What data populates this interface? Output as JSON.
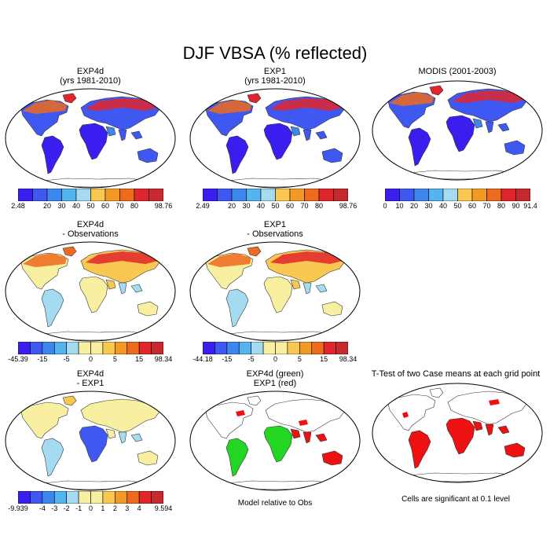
{
  "title": "DJF VBSA (% reflected)",
  "palette": [
    "#3a1ef0",
    "#3f58f2",
    "#3c86ee",
    "#54b4ee",
    "#a4dbf0",
    "#f8f0a0",
    "#f8c850",
    "#f39a26",
    "#ee6a1c",
    "#e0262c",
    "#c62a2e"
  ],
  "green": "#22d622",
  "red": "#ee1111",
  "panels": [
    {
      "id": "exp4d",
      "title": [
        "EXP4d",
        "(yrs 1981-2010)"
      ],
      "map": "full",
      "scheme": "abs",
      "ticks": [
        "2.48",
        "",
        "20",
        "30",
        "40",
        "50",
        "60",
        "70",
        "80",
        "",
        "98.76"
      ]
    },
    {
      "id": "exp1",
      "title": [
        "EXP1",
        "(yrs 1981-2010)"
      ],
      "map": "full",
      "scheme": "abs",
      "ticks": [
        "2.49",
        "",
        "20",
        "30",
        "40",
        "50",
        "60",
        "70",
        "80",
        "",
        "98.76"
      ]
    },
    {
      "id": "modis",
      "title": [
        "MODIS (2001-2003)"
      ],
      "map": "full",
      "scheme": "abs",
      "ticks": [
        "0",
        "10",
        "20",
        "30",
        "40",
        "50",
        "60",
        "70",
        "80",
        "90",
        "91.4"
      ]
    },
    {
      "id": "exp4d-obs",
      "title": [
        "EXP4d",
        "- Observations"
      ],
      "map": "full",
      "scheme": "diff",
      "ticks": [
        "-45.39",
        "",
        "-15",
        "",
        "-5",
        "",
        "0",
        "",
        "5",
        "",
        "15",
        "",
        "98.34"
      ]
    },
    {
      "id": "exp1-obs",
      "title": [
        "EXP1",
        "- Observations"
      ],
      "map": "full",
      "scheme": "diff",
      "ticks": [
        "-44.18",
        "",
        "-15",
        "",
        "-5",
        "",
        "0",
        "",
        "5",
        "",
        "15",
        "",
        "98.34"
      ]
    },
    {
      "id": "exp4d-exp1",
      "title": [
        "EXP4d",
        "- EXP1"
      ],
      "map": "full",
      "scheme": "small",
      "ticks": [
        "-9.939",
        "",
        "-4",
        "-3",
        "-2",
        "-1",
        "0",
        "1",
        "2",
        "3",
        "4",
        "",
        "9.594"
      ]
    },
    {
      "id": "green-red",
      "title": [
        "EXP4d (green)",
        "EXP1 (red)"
      ],
      "map": "greenred",
      "scheme": "none",
      "ticks": []
    },
    {
      "id": "ttest",
      "title": [
        "T-Test of two Case means at each grid point"
      ],
      "map": "red",
      "scheme": "none",
      "ticks": []
    }
  ],
  "notes": {
    "model_relative": "Model relative to Obs",
    "significance": "Cells are significant at 0.1 level"
  },
  "chart_data": [
    {
      "type": "heatmap",
      "title": "EXP4d (yrs 1981-2010)",
      "colorbar": [
        "2.48",
        "20",
        "30",
        "40",
        "50",
        "60",
        "70",
        "80",
        "98.76"
      ]
    },
    {
      "type": "heatmap",
      "title": "EXP1 (yrs 1981-2010)",
      "colorbar": [
        "2.49",
        "20",
        "30",
        "40",
        "50",
        "60",
        "70",
        "80",
        "98.76"
      ]
    },
    {
      "type": "heatmap",
      "title": "MODIS (2001-2003)",
      "colorbar": [
        "0",
        "10",
        "20",
        "30",
        "40",
        "50",
        "60",
        "70",
        "80",
        "90",
        "91.4"
      ]
    },
    {
      "type": "heatmap",
      "title": "EXP4d - Observations",
      "colorbar": [
        "-45.39",
        "-15",
        "-5",
        "0",
        "5",
        "15",
        "98.34"
      ]
    },
    {
      "type": "heatmap",
      "title": "EXP1 - Observations",
      "colorbar": [
        "-44.18",
        "-15",
        "-5",
        "0",
        "5",
        "15",
        "98.34"
      ]
    },
    {
      "type": "heatmap",
      "title": "EXP4d - EXP1",
      "colorbar": [
        "-9.939",
        "-4",
        "-3",
        "-2",
        "-1",
        "0",
        "1",
        "2",
        "3",
        "4",
        "9.594"
      ]
    },
    {
      "type": "heatmap",
      "title": "EXP4d (green) EXP1 (red)",
      "note": "Model relative to Obs"
    },
    {
      "type": "heatmap",
      "title": "T-Test of two Case means at each grid point",
      "note": "Cells are significant at 0.1 level"
    }
  ]
}
